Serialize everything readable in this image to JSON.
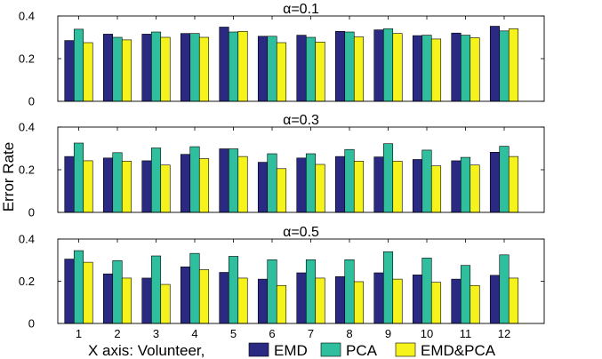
{
  "chart_data": {
    "type": "bar",
    "ylabel": "Error Rate",
    "xlabel": "X axis: Volunteer,",
    "legend": {
      "position": "bottom",
      "entries": [
        "EMD",
        "PCA",
        "EMD&PCA"
      ]
    },
    "colors": {
      "EMD": "#2b2a83",
      "PCA": "#2fbf9e",
      "EMD&PCA": "#f5f21c"
    },
    "categories": [
      "1",
      "2",
      "3",
      "4",
      "5",
      "6",
      "7",
      "8",
      "9",
      "10",
      "11",
      "12"
    ],
    "ylim": [
      0,
      0.4
    ],
    "yticks": [
      "0",
      "0.2",
      "0.4"
    ],
    "grid": false,
    "panels": [
      {
        "title": "α=0.1",
        "series": [
          {
            "name": "EMD",
            "values": [
              0.285,
              0.315,
              0.315,
              0.318,
              0.348,
              0.305,
              0.31,
              0.328,
              0.335,
              0.308,
              0.32,
              0.352
            ]
          },
          {
            "name": "PCA",
            "values": [
              0.338,
              0.3,
              0.325,
              0.318,
              0.325,
              0.305,
              0.3,
              0.325,
              0.34,
              0.31,
              0.31,
              0.33
            ]
          },
          {
            "name": "EMD&PCA",
            "values": [
              0.275,
              0.288,
              0.3,
              0.3,
              0.328,
              0.275,
              0.278,
              0.302,
              0.318,
              0.292,
              0.298,
              0.34
            ]
          }
        ]
      },
      {
        "title": "α=0.3",
        "series": [
          {
            "name": "EMD",
            "values": [
              0.262,
              0.255,
              0.242,
              0.272,
              0.298,
              0.235,
              0.255,
              0.262,
              0.26,
              0.248,
              0.242,
              0.282
            ]
          },
          {
            "name": "PCA",
            "values": [
              0.325,
              0.28,
              0.302,
              0.308,
              0.298,
              0.275,
              0.275,
              0.295,
              0.322,
              0.292,
              0.258,
              0.31
            ]
          },
          {
            "name": "EMD&PCA",
            "values": [
              0.242,
              0.24,
              0.222,
              0.252,
              0.262,
              0.205,
              0.225,
              0.24,
              0.24,
              0.218,
              0.222,
              0.262
            ]
          }
        ]
      },
      {
        "title": "α=0.5",
        "series": [
          {
            "name": "EMD",
            "values": [
              0.305,
              0.235,
              0.215,
              0.268,
              0.242,
              0.21,
              0.24,
              0.222,
              0.24,
              0.23,
              0.21,
              0.228
            ]
          },
          {
            "name": "PCA",
            "values": [
              0.345,
              0.298,
              0.32,
              0.332,
              0.318,
              0.302,
              0.302,
              0.302,
              0.34,
              0.31,
              0.275,
              0.325
            ]
          },
          {
            "name": "EMD&PCA",
            "values": [
              0.29,
              0.215,
              0.185,
              0.255,
              0.215,
              0.18,
              0.215,
              0.198,
              0.21,
              0.195,
              0.18,
              0.215
            ]
          }
        ]
      }
    ]
  }
}
